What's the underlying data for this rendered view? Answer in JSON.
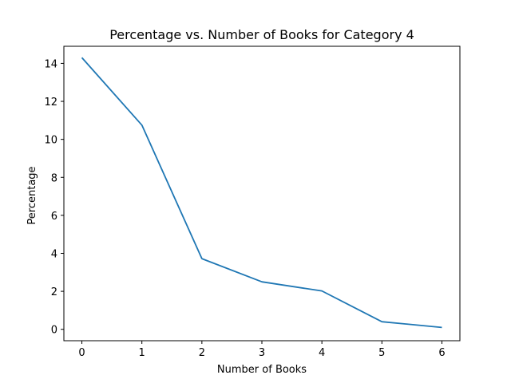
{
  "chart_data": {
    "type": "line",
    "title": "Percentage vs. Number of Books for Category 4",
    "xlabel": "Number of Books",
    "ylabel": "Percentage",
    "xlim": [
      -0.3,
      6.3
    ],
    "ylim": [
      -0.6,
      14.9
    ],
    "xticks": [
      0,
      1,
      2,
      3,
      4,
      5,
      6
    ],
    "yticks": [
      0,
      2,
      4,
      6,
      8,
      10,
      12,
      14
    ],
    "grid": false,
    "series": [
      {
        "color": "#1f77b4",
        "x": [
          0,
          1,
          2,
          3,
          4,
          5,
          6
        ],
        "y": [
          14.3,
          10.75,
          3.72,
          2.5,
          2.02,
          0.4,
          0.1
        ]
      }
    ]
  }
}
